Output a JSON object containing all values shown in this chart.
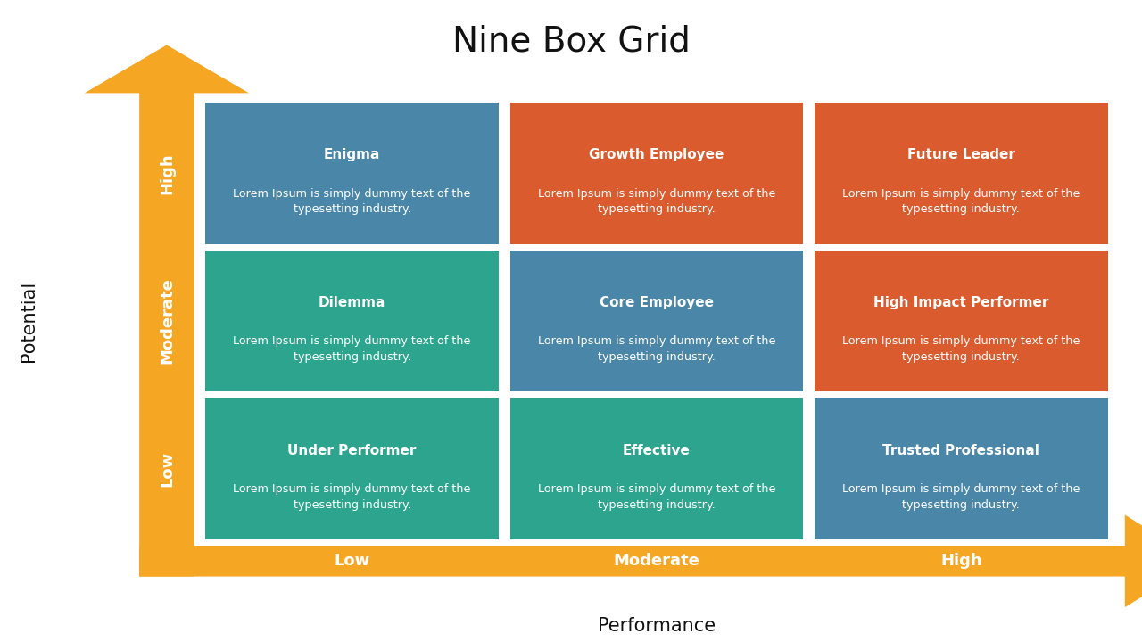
{
  "title": "Nine Box Grid",
  "title_fontsize": 28,
  "title_font": "Georgia",
  "xlabel": "Performance",
  "ylabel": "Potential",
  "xlabel_fontsize": 15,
  "ylabel_fontsize": 15,
  "background_color": "#ffffff",
  "arrow_color": "#F5A623",
  "x_labels": [
    "Low",
    "Moderate",
    "High"
  ],
  "y_labels": [
    "Low",
    "Moderate",
    "High"
  ],
  "row_labels_fontsize": 13,
  "axis_label_fontsize": 15,
  "boxes": [
    {
      "row": 2,
      "col": 0,
      "title": "Enigma",
      "color": "#4A86A8",
      "title_fs": 11,
      "body_fs": 9.2
    },
    {
      "row": 2,
      "col": 1,
      "title": "Growth Employee",
      "color": "#D95B2E",
      "title_fs": 11,
      "body_fs": 9.2
    },
    {
      "row": 2,
      "col": 2,
      "title": "Future Leader",
      "color": "#D95B2E",
      "title_fs": 11,
      "body_fs": 9.2
    },
    {
      "row": 1,
      "col": 0,
      "title": "Dilemma",
      "color": "#2DA58E",
      "title_fs": 11,
      "body_fs": 9.2
    },
    {
      "row": 1,
      "col": 1,
      "title": "Core Employee",
      "color": "#4A86A8",
      "title_fs": 11,
      "body_fs": 9.2
    },
    {
      "row": 1,
      "col": 2,
      "title": "High Impact Performer",
      "color": "#D95B2E",
      "title_fs": 11,
      "body_fs": 9.2
    },
    {
      "row": 0,
      "col": 0,
      "title": "Under Performer",
      "color": "#2DA58E",
      "title_fs": 11,
      "body_fs": 9.2
    },
    {
      "row": 0,
      "col": 1,
      "title": "Effective",
      "color": "#2DA58E",
      "title_fs": 11,
      "body_fs": 9.2
    },
    {
      "row": 0,
      "col": 2,
      "title": "Trusted Professional",
      "color": "#4A86A8",
      "title_fs": 11,
      "body_fs": 9.2
    }
  ],
  "body_text": "Lorem Ipsum is simply dummy text of the\ntypesetting industry.",
  "text_color": "#ffffff"
}
